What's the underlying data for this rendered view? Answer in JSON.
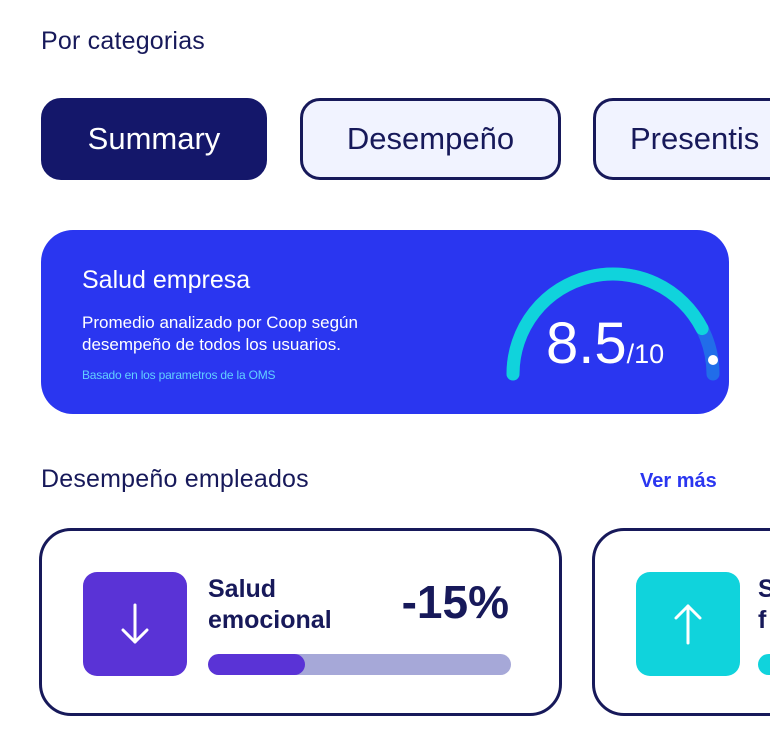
{
  "categories": {
    "title": "Por categorias",
    "tabs": [
      {
        "label": "Summary",
        "active": true
      },
      {
        "label": "Desempeño",
        "active": false
      },
      {
        "label": "Presentis",
        "active": false
      }
    ]
  },
  "health": {
    "title": "Salud empresa",
    "description": "Promedio analizado por Coop según desempeño de todos los usuarios.",
    "note": "Basado en los parametros de la OMS",
    "score": "8.5",
    "score_max": "/10",
    "score_fraction": 0.85
  },
  "employees": {
    "title": "Desempeño empleados",
    "see_more": "Ver más",
    "cards": [
      {
        "label_line1": "Salud",
        "label_line2": "emocional",
        "value": "-15%",
        "trend": "down",
        "icon": "arrow-down-icon",
        "progress": 0.32
      },
      {
        "label_line1": "S",
        "label_line2": "f",
        "trend": "up",
        "icon": "arrow-up-icon"
      }
    ]
  },
  "colors": {
    "navy": "#17195a",
    "tab_active": "#14176a",
    "brand_blue": "#2a36f0",
    "gauge_cyan": "#10d3dc",
    "purple": "#5a33d6",
    "note_cyan": "#62d0ff"
  }
}
